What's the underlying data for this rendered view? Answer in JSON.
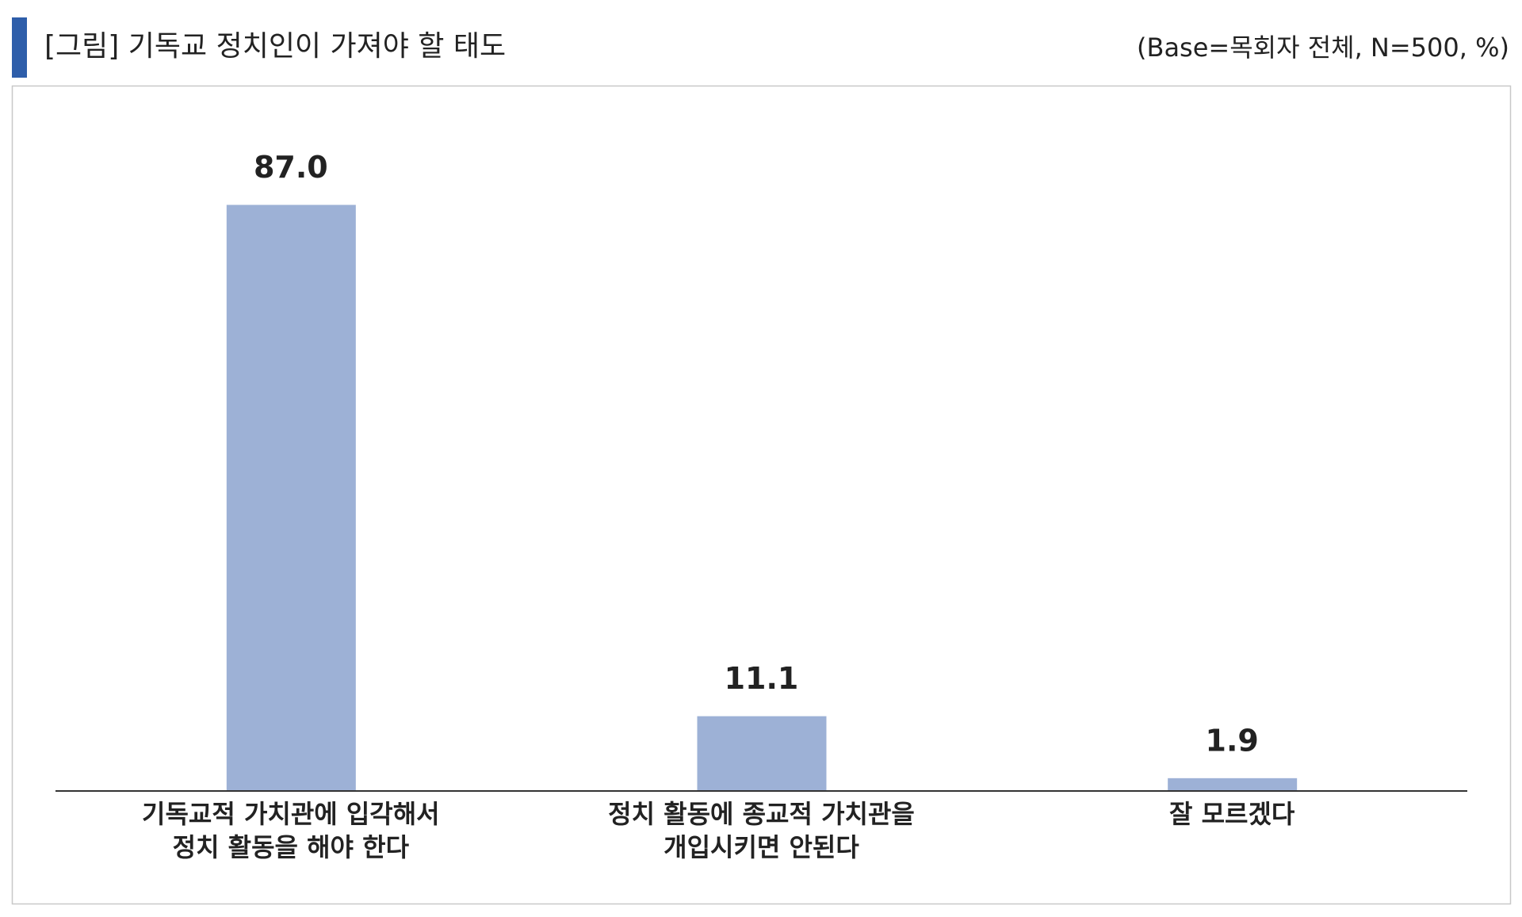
{
  "chart_data": {
    "type": "bar",
    "title": "[그림] 기독교 정치인이 가져야 할 태도",
    "subtitle": "(Base=목회자 전체, N=500, %)",
    "categories": [
      "기독교적 가치관에 입각해서\n정치 활동을 해야 한다",
      "정치 활동에 종교적 가치관을\n개입시키면 안된다",
      "잘 모르겠다"
    ],
    "values": [
      87,
      11.1,
      1.9
    ],
    "value_labels": [
      "87.0",
      "11.1",
      "1.9"
    ],
    "color": "#9db1d6",
    "ylim": [
      0,
      100
    ]
  }
}
